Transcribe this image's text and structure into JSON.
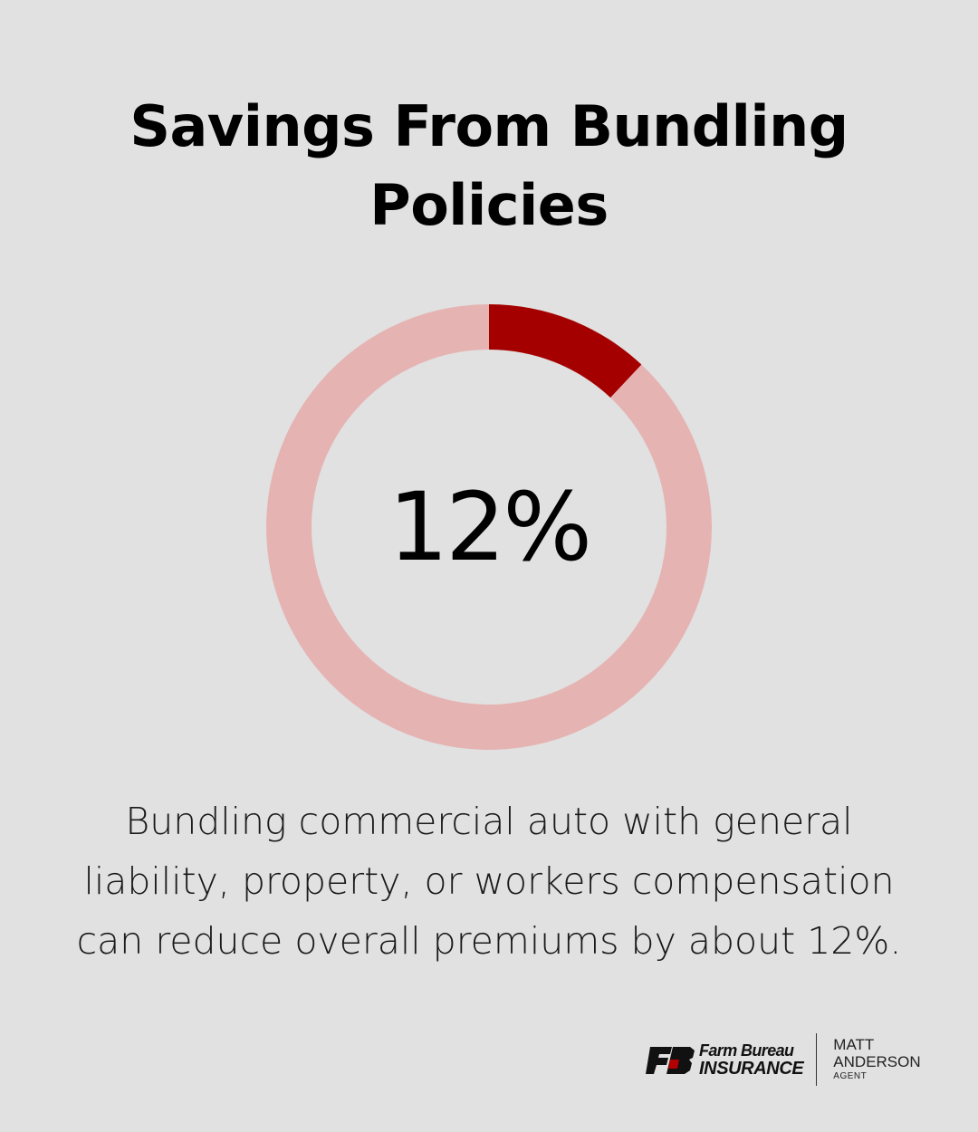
{
  "header": {
    "title_lines": [
      "Savings From Bundling",
      "Policies"
    ]
  },
  "chart_data": {
    "type": "pie",
    "style": "donut",
    "values": [
      12,
      88
    ],
    "center_label": "12%",
    "colors": {
      "highlight": "#a50000",
      "remainder": "#e6b3b3"
    }
  },
  "description": {
    "lines": [
      "Bundling commercial auto with general",
      "liability, property, or workers compensation",
      "can reduce overall premiums by about 12%."
    ]
  },
  "brand": {
    "line1": "Farm Bureau",
    "line2": "INSURANCE",
    "agent_first": "MATT",
    "agent_last": "ANDERSON",
    "agent_role": "AGENT"
  },
  "colors": {
    "background": "#e0e1e0",
    "logo_red": "#b30000",
    "logo_dark": "#111111"
  }
}
